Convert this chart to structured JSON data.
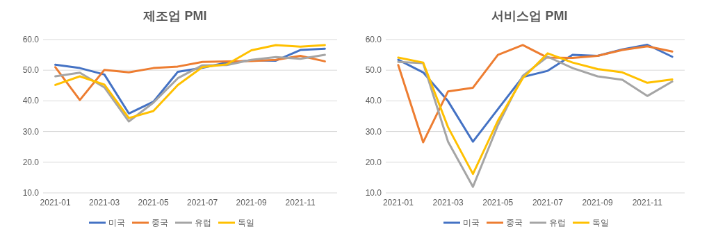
{
  "chart_data": [
    {
      "type": "line",
      "title": "제조업 PMI",
      "categories": [
        "2021-01",
        null,
        "2021-03",
        null,
        "2021-05",
        null,
        "2021-07",
        null,
        "2021-09",
        null,
        "2021-11",
        null
      ],
      "ylim": [
        10,
        60
      ],
      "yticks": [
        {
          "value": 10,
          "label": "10.0"
        },
        {
          "value": 20,
          "label": "20.0"
        },
        {
          "value": 30,
          "label": "30.0"
        },
        {
          "value": 40,
          "label": "40.0"
        },
        {
          "value": 50,
          "label": "50.0"
        },
        {
          "value": 60,
          "label": "60.0"
        }
      ],
      "grid": "y",
      "legend": "bottom",
      "series": [
        {
          "name": "미국",
          "color": "#4472c4",
          "values": [
            51.8,
            50.7,
            48.6,
            35.9,
            39.7,
            49.5,
            50.8,
            52.5,
            53.2,
            53.1,
            56.6,
            57.0
          ]
        },
        {
          "name": "중국",
          "color": "#ed7d31",
          "values": [
            51.0,
            40.3,
            50.1,
            49.3,
            50.7,
            51.2,
            52.7,
            52.9,
            53.0,
            53.4,
            54.7,
            52.9
          ]
        },
        {
          "name": "유럽",
          "color": "#a5a5a5",
          "values": [
            48.0,
            49.2,
            44.4,
            33.3,
            39.4,
            47.4,
            51.6,
            51.7,
            53.4,
            54.3,
            53.7,
            55.0
          ]
        },
        {
          "name": "독일",
          "color": "#ffc000",
          "values": [
            45.2,
            48.0,
            45.3,
            34.4,
            36.7,
            45.2,
            51.0,
            51.9,
            56.5,
            58.2,
            57.7,
            58.2
          ]
        }
      ]
    },
    {
      "type": "line",
      "title": "서비스업 PMI",
      "categories": [
        "2021-01",
        null,
        "2021-03",
        null,
        "2021-05",
        null,
        "2021-07",
        null,
        "2021-09",
        null,
        "2021-11",
        null
      ],
      "ylim": [
        10,
        60
      ],
      "yticks": [
        {
          "value": 10,
          "label": "10.0"
        },
        {
          "value": 20,
          "label": "20.0"
        },
        {
          "value": 30,
          "label": "30.0"
        },
        {
          "value": 40,
          "label": "40.0"
        },
        {
          "value": 50,
          "label": "50.0"
        },
        {
          "value": 60,
          "label": "60.0"
        }
      ],
      "grid": "y",
      "legend": "bottom",
      "series": [
        {
          "name": "미국",
          "color": "#4472c4",
          "values": [
            53.4,
            49.3,
            39.9,
            26.7,
            37.3,
            47.8,
            49.8,
            55.0,
            54.7,
            56.8,
            58.3,
            54.4
          ]
        },
        {
          "name": "중국",
          "color": "#ed7d31",
          "values": [
            51.7,
            26.5,
            43.1,
            44.3,
            55.0,
            58.2,
            54.1,
            54.0,
            54.7,
            56.6,
            57.8,
            56.1
          ]
        },
        {
          "name": "유럽",
          "color": "#a5a5a5",
          "values": [
            52.7,
            52.3,
            26.7,
            12.0,
            32.0,
            48.2,
            54.4,
            50.7,
            48.0,
            46.9,
            41.6,
            46.3
          ]
        },
        {
          "name": "독일",
          "color": "#ffc000",
          "values": [
            54.1,
            52.5,
            31.4,
            16.2,
            33.5,
            47.4,
            55.5,
            52.5,
            50.4,
            49.3,
            45.9,
            47.0
          ]
        }
      ]
    }
  ]
}
